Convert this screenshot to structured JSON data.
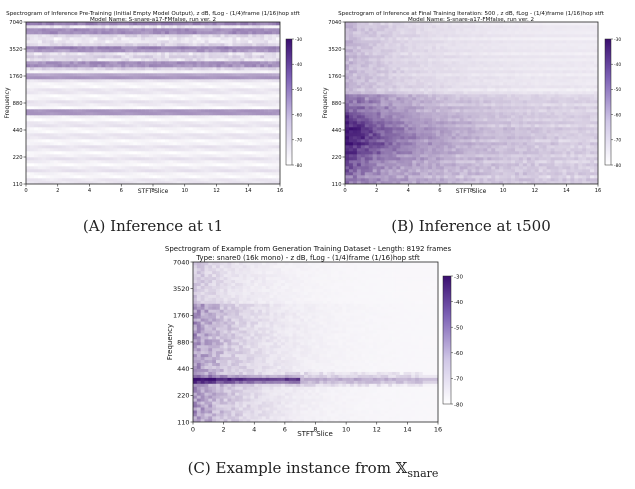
{
  "colors": {
    "cmap_low": "#ffffff",
    "cmap_high": "#3b0f70"
  },
  "chart_data": [
    {
      "type": "heatmap",
      "title": "Spectrogram of Inference Pre-Training (Initial Empty Model Output), z dB, fLog -  (1/4)frame (1/16)hop stft",
      "subtitle": "Model Name: S-snare-a17-FMfalse, run ver. 2",
      "xlabel": "STFT Slice",
      "ylabel": "Frequency",
      "xlim": [
        0,
        16
      ],
      "xticks": [
        0,
        2,
        4,
        6,
        8,
        10,
        12,
        14,
        16
      ],
      "ylim": [
        110,
        7040
      ],
      "yscale": "log",
      "yticks": [
        110,
        220,
        440,
        880,
        1760,
        3520,
        7040
      ],
      "colorbar_ticks": [
        -30,
        -40,
        -50,
        -60,
        -70,
        -80
      ],
      "colorbar_range": [
        -80,
        -30
      ],
      "pattern": "horizontal bands",
      "bands": [
        7040,
        5600,
        3520,
        2400,
        1760,
        700
      ],
      "caption": "(A) Inference at ι1"
    },
    {
      "type": "heatmap",
      "title": "Spectrogram of Inference at Final Training Iteration: 500 , z dB, fLog -  (1/4)frame (1/16)hop stft",
      "subtitle": "Model Name: S-snare-a17-FMfalse, run ver. 2",
      "xlabel": "STFT Slice",
      "ylabel": "Frequency",
      "xlim": [
        0,
        16
      ],
      "xticks": [
        0,
        2,
        4,
        6,
        8,
        10,
        12,
        14,
        16
      ],
      "ylim": [
        110,
        7040
      ],
      "yscale": "log",
      "yticks": [
        110,
        220,
        440,
        880,
        1760,
        3520,
        7040
      ],
      "colorbar_ticks": [
        -30,
        -40,
        -50,
        -60,
        -70,
        -80
      ],
      "colorbar_range": [
        -80,
        -30
      ],
      "pattern": "decaying noise",
      "caption": "(B) Inference at ι500"
    },
    {
      "type": "heatmap",
      "title": "Spectrogram of Example from Generation Training Dataset  -  Length: 8192 frames",
      "subtitle": "Type: snare0 (16k mono)  -  z dB, fLog  -  (1/4)frame (1/16)hop stft",
      "xlabel": "STFT Slice",
      "ylabel": "Frequency",
      "xlim": [
        0,
        16
      ],
      "xticks": [
        0,
        2,
        4,
        6,
        8,
        10,
        12,
        14,
        16
      ],
      "ylim": [
        110,
        7040
      ],
      "yscale": "log",
      "yticks": [
        110,
        220,
        440,
        880,
        1760,
        3520,
        7040
      ],
      "colorbar_ticks": [
        -30,
        -40,
        -50,
        -60,
        -70,
        -80
      ],
      "colorbar_range": [
        -80,
        -30
      ],
      "pattern": "snare example",
      "caption": "(C) Example instance from 𝕏"
    }
  ],
  "caption_c_subscript": "snare"
}
